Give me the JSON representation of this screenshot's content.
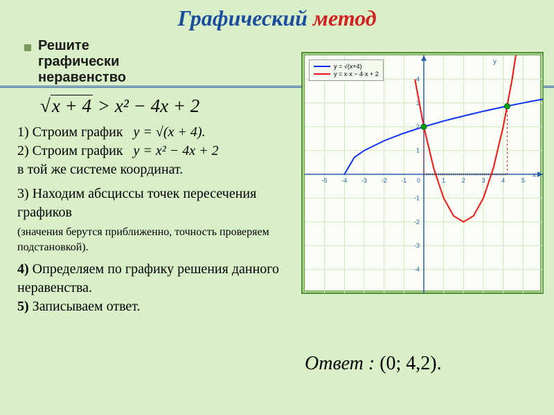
{
  "title": {
    "part1": "Графический",
    "part2": "метод"
  },
  "prompt": {
    "line1": "Решите",
    "line2": "графически",
    "line3": "неравенство"
  },
  "inequality": {
    "lhs_radicand": "x + 4",
    "op": ">",
    "rhs": "x² − 4x + 2"
  },
  "steps": {
    "s1_label": "1) Строим график",
    "s1_formula": "y = √(x + 4).",
    "s2_label": "2) Строим график",
    "s2_formula": "y = x² − 4x + 2",
    "s2_tail": "в той же системе координат.",
    "s3": "3) Находим абсциссы точек пересечения графиков",
    "s3_note": "(значения берутся приближенно, точность проверяем подстановкой).",
    "s4_prefix": "4)",
    "s4_text": "Определяем по графику решения данного неравенства.",
    "s5_prefix": "5)",
    "s5_text": "Записываем ответ."
  },
  "answer": {
    "label": "Ответ",
    "value": "(0; 4,2)."
  },
  "chart": {
    "legend": {
      "sqrt": {
        "color": "#1030ff",
        "label": "y = √(x+4)"
      },
      "para": {
        "color": "#ff1010",
        "label": "y = x·x − 4·x + 2"
      }
    },
    "xlim": [
      -6,
      6
    ],
    "ylim": [
      -5,
      5
    ],
    "xticks": [
      -6,
      -5,
      -4,
      -3,
      -2,
      -1,
      0,
      1,
      2,
      3,
      4,
      5,
      6
    ],
    "yticks": [
      -4,
      -3,
      -2,
      -1,
      0,
      1,
      2,
      3,
      4
    ],
    "grid_color": "#cfe8c0",
    "axis_color": "#2a5da8",
    "background": "#f9fdf5",
    "sqrt_curve": {
      "color": "#1030ff",
      "width": 2,
      "points": [
        [
          -4,
          0
        ],
        [
          -3.5,
          0.71
        ],
        [
          -3,
          1
        ],
        [
          -2,
          1.41
        ],
        [
          -1,
          1.73
        ],
        [
          0,
          2
        ],
        [
          1,
          2.24
        ],
        [
          2,
          2.45
        ],
        [
          3,
          2.65
        ],
        [
          4,
          2.83
        ],
        [
          5,
          3
        ],
        [
          6,
          3.16
        ]
      ]
    },
    "parabola": {
      "color": "#ff1010",
      "width": 2,
      "points": [
        [
          -0.45,
          4
        ],
        [
          0,
          2
        ],
        [
          0.5,
          0.25
        ],
        [
          1,
          -1
        ],
        [
          1.5,
          -1.75
        ],
        [
          2,
          -2
        ],
        [
          2.5,
          -1.75
        ],
        [
          3,
          -1
        ],
        [
          3.5,
          0.25
        ],
        [
          4,
          2
        ],
        [
          4.45,
          4
        ],
        [
          5,
          7
        ]
      ]
    },
    "intersections": {
      "color": "#00a000",
      "points": [
        [
          0,
          2
        ],
        [
          4.2,
          2.86
        ]
      ]
    },
    "solution_interval": {
      "from_x": 0,
      "to_x": 4.2,
      "y": 0,
      "color": "#505050"
    }
  }
}
